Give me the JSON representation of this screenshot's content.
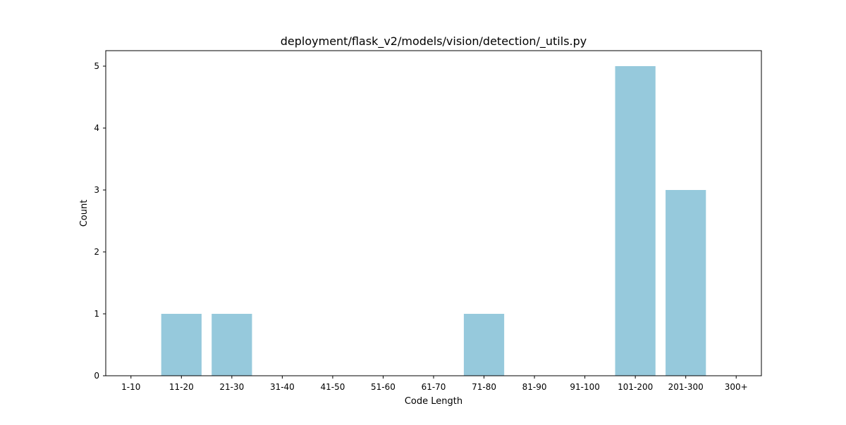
{
  "chart_data": {
    "type": "bar",
    "title": "deployment/flask_v2/models/vision/detection/_utils.py",
    "xlabel": "Code Length",
    "ylabel": "Count",
    "categories": [
      "1-10",
      "11-20",
      "21-30",
      "31-40",
      "41-50",
      "51-60",
      "61-70",
      "71-80",
      "81-90",
      "91-100",
      "101-200",
      "201-300",
      "300+"
    ],
    "values": [
      0,
      1,
      1,
      0,
      0,
      0,
      0,
      1,
      0,
      0,
      5,
      3,
      0
    ],
    "ylim": [
      0,
      5.25
    ],
    "yticks": [
      0,
      1,
      2,
      3,
      4,
      5
    ],
    "bar_color": "#96c9dc",
    "grid": false,
    "legend": "none"
  }
}
